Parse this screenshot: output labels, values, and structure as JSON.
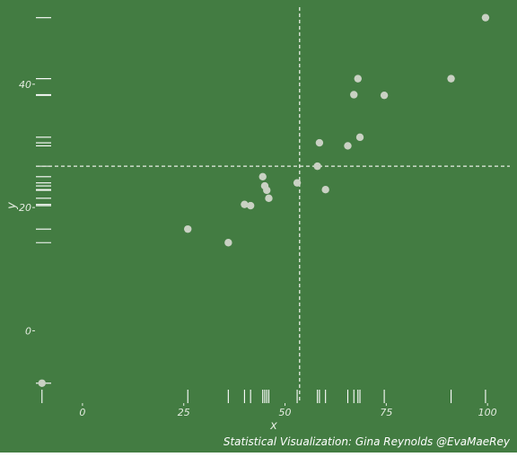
{
  "chart_data": {
    "type": "scatter",
    "title": "",
    "xlabel": "x",
    "ylabel": "y",
    "caption": "Statistical Visualization: Gina Reynolds @EvaMaeRey",
    "xlim": [
      -11.5,
      105.5
    ],
    "ylim": [
      -11.3,
      52.5
    ],
    "x_ticks": [
      0,
      25,
      50,
      75,
      100
    ],
    "x_tick_labels": [
      "0",
      "25",
      "50",
      "75",
      "100"
    ],
    "y_ticks": [
      0,
      20,
      40
    ],
    "y_tick_labels": [
      "0",
      "20",
      "40"
    ],
    "grid": false,
    "rug": true,
    "reference_lines": {
      "x_mean": 53.6,
      "y_mean": 26.7
    },
    "colors": {
      "background": "#437c42",
      "points": "#c9d1c3",
      "rug": "#ffffff",
      "reference_lines": "#e8eee4"
    },
    "points": [
      {
        "x": -10,
        "y": -8.5
      },
      {
        "x": 26,
        "y": 16.5
      },
      {
        "x": 36,
        "y": 14.3
      },
      {
        "x": 40,
        "y": 20.5
      },
      {
        "x": 41.5,
        "y": 20.3
      },
      {
        "x": 44.5,
        "y": 25
      },
      {
        "x": 45,
        "y": 23.5
      },
      {
        "x": 45.5,
        "y": 22.8
      },
      {
        "x": 46,
        "y": 21.5
      },
      {
        "x": 53,
        "y": 24
      },
      {
        "x": 58,
        "y": 26.7
      },
      {
        "x": 58.5,
        "y": 30.5
      },
      {
        "x": 60,
        "y": 22.9
      },
      {
        "x": 65.5,
        "y": 30
      },
      {
        "x": 67,
        "y": 38.3
      },
      {
        "x": 68,
        "y": 40.9
      },
      {
        "x": 68.5,
        "y": 31.4
      },
      {
        "x": 74.5,
        "y": 38.2
      },
      {
        "x": 91,
        "y": 40.9
      },
      {
        "x": 99.5,
        "y": 50.8
      }
    ]
  }
}
